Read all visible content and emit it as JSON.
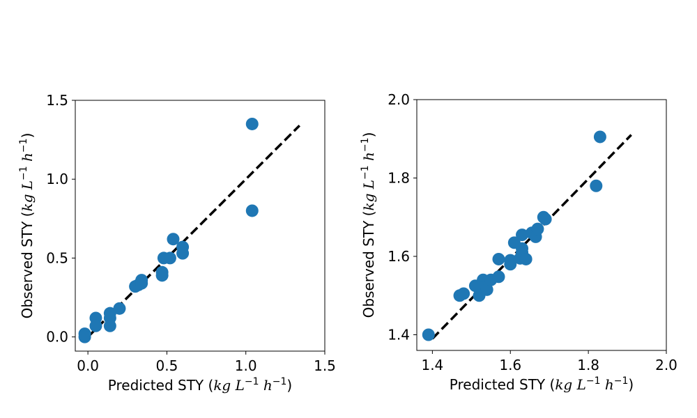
{
  "chart_data": [
    {
      "type": "scatter",
      "xlabel": "Predicted STY",
      "ylabel": "Observed STY",
      "unit_label": {
        "kg": "kg",
        "L": "L",
        "L_exp": "−1",
        "h": "h",
        "h_exp": "−1"
      },
      "xlim": [
        -0.08,
        1.5
      ],
      "ylim": [
        -0.09,
        1.5
      ],
      "xticks": [
        0.0,
        0.5,
        1.0,
        1.5
      ],
      "xtick_labels": [
        "0.0",
        "0.5",
        "1.0",
        "1.5"
      ],
      "yticks": [
        0.0,
        0.5,
        1.0,
        1.5
      ],
      "ytick_labels": [
        "0.0",
        "0.5",
        "1.0",
        "1.5"
      ],
      "grid": false,
      "marker_color": "#1f77b4",
      "reference_line": {
        "style": "dashed",
        "color": "#000000",
        "from": [
          0.0,
          0.0
        ],
        "to": [
          1.34,
          1.34
        ]
      },
      "points": [
        {
          "x": -0.02,
          "y": 0.02
        },
        {
          "x": -0.02,
          "y": 0.0
        },
        {
          "x": 0.05,
          "y": 0.12
        },
        {
          "x": 0.05,
          "y": 0.07
        },
        {
          "x": 0.14,
          "y": 0.15
        },
        {
          "x": 0.14,
          "y": 0.12
        },
        {
          "x": 0.14,
          "y": 0.07
        },
        {
          "x": 0.2,
          "y": 0.18
        },
        {
          "x": 0.3,
          "y": 0.32
        },
        {
          "x": 0.32,
          "y": 0.33
        },
        {
          "x": 0.34,
          "y": 0.36
        },
        {
          "x": 0.34,
          "y": 0.34
        },
        {
          "x": 0.47,
          "y": 0.41
        },
        {
          "x": 0.47,
          "y": 0.39
        },
        {
          "x": 0.48,
          "y": 0.5
        },
        {
          "x": 0.52,
          "y": 0.5
        },
        {
          "x": 0.54,
          "y": 0.62
        },
        {
          "x": 0.6,
          "y": 0.57
        },
        {
          "x": 0.6,
          "y": 0.53
        },
        {
          "x": 1.04,
          "y": 1.35
        },
        {
          "x": 1.04,
          "y": 0.8
        }
      ]
    },
    {
      "type": "scatter",
      "xlabel": "Predicted STY",
      "ylabel": "Observed STY",
      "unit_label": {
        "kg": "kg",
        "L": "L",
        "L_exp": "−1",
        "h": "h",
        "h_exp": "−1"
      },
      "xlim": [
        1.36,
        2.0
      ],
      "ylim": [
        1.36,
        2.0
      ],
      "xticks": [
        1.4,
        1.6,
        1.8,
        2.0
      ],
      "xtick_labels": [
        "1.4",
        "1.6",
        "1.8",
        "2.0"
      ],
      "yticks": [
        1.4,
        1.6,
        1.8,
        2.0
      ],
      "ytick_labels": [
        "1.4",
        "1.6",
        "1.8",
        "2.0"
      ],
      "grid": false,
      "marker_color": "#1f77b4",
      "reference_line": {
        "style": "dashed",
        "color": "#000000",
        "from": [
          1.4,
          1.39
        ],
        "to": [
          1.91,
          1.91
        ]
      },
      "points": [
        {
          "x": 1.39,
          "y": 1.4
        },
        {
          "x": 1.47,
          "y": 1.5
        },
        {
          "x": 1.48,
          "y": 1.505
        },
        {
          "x": 1.51,
          "y": 1.525
        },
        {
          "x": 1.52,
          "y": 1.5
        },
        {
          "x": 1.53,
          "y": 1.54
        },
        {
          "x": 1.53,
          "y": 1.52
        },
        {
          "x": 1.54,
          "y": 1.515
        },
        {
          "x": 1.55,
          "y": 1.54
        },
        {
          "x": 1.57,
          "y": 1.593
        },
        {
          "x": 1.57,
          "y": 1.548
        },
        {
          "x": 1.6,
          "y": 1.59
        },
        {
          "x": 1.6,
          "y": 1.58
        },
        {
          "x": 1.61,
          "y": 1.635
        },
        {
          "x": 1.625,
          "y": 1.595
        },
        {
          "x": 1.63,
          "y": 1.655
        },
        {
          "x": 1.63,
          "y": 1.62
        },
        {
          "x": 1.63,
          "y": 1.61
        },
        {
          "x": 1.64,
          "y": 1.593
        },
        {
          "x": 1.655,
          "y": 1.66
        },
        {
          "x": 1.665,
          "y": 1.65
        },
        {
          "x": 1.67,
          "y": 1.67
        },
        {
          "x": 1.685,
          "y": 1.7
        },
        {
          "x": 1.69,
          "y": 1.695
        },
        {
          "x": 1.82,
          "y": 1.78
        },
        {
          "x": 1.83,
          "y": 1.905
        }
      ]
    }
  ]
}
